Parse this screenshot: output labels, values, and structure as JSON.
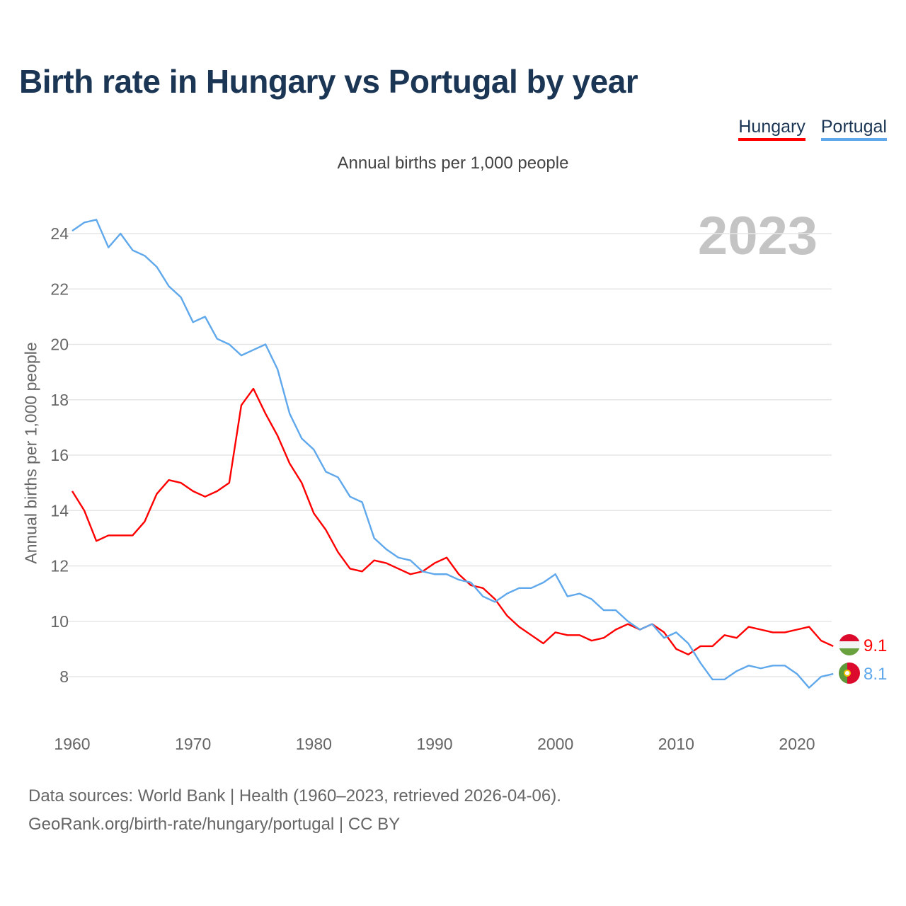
{
  "title": "Birth rate in Hungary vs Portugal by year",
  "subtitle": "Annual births per 1,000 people",
  "year_label": "2023",
  "footer": {
    "line1": "Data sources: World Bank | Health (1960–2023, retrieved 2026-04-06).",
    "line2": "GeoRank.org/birth-rate/hungary/portugal | CC BY"
  },
  "chart_data": {
    "type": "line",
    "title": "Birth rate in Hungary vs Portugal by year",
    "xlabel": "",
    "ylabel": "Annual births per 1,000 people",
    "xlim": [
      1960,
      2023
    ],
    "ylim": [
      7,
      25
    ],
    "xticks": [
      "1960",
      "1970",
      "1980",
      "1990",
      "2000",
      "2010",
      "2020"
    ],
    "yticks": [
      "8",
      "10",
      "12",
      "14",
      "16",
      "18",
      "20",
      "22",
      "24"
    ],
    "grid": true,
    "legend": "top-right",
    "x_start": 1960,
    "series": [
      {
        "name": "Hungary",
        "color": "#ff0000",
        "end_label": "9.1",
        "values": [
          14.7,
          14.0,
          12.9,
          13.1,
          13.1,
          13.1,
          13.6,
          14.6,
          15.1,
          15.0,
          14.7,
          14.5,
          14.7,
          15.0,
          17.8,
          18.4,
          17.5,
          16.7,
          15.7,
          15.0,
          13.9,
          13.3,
          12.5,
          11.9,
          11.8,
          12.2,
          12.1,
          11.9,
          11.7,
          11.8,
          12.1,
          12.3,
          11.7,
          11.3,
          11.2,
          10.8,
          10.2,
          9.8,
          9.5,
          9.2,
          9.6,
          9.5,
          9.5,
          9.3,
          9.4,
          9.7,
          9.9,
          9.7,
          9.9,
          9.6,
          9.0,
          8.8,
          9.1,
          9.1,
          9.5,
          9.4,
          9.8,
          9.7,
          9.6,
          9.6,
          9.7,
          9.8,
          9.3,
          9.1
        ]
      },
      {
        "name": "Portugal",
        "color": "#5fa8ec",
        "end_label": "8.1",
        "values": [
          24.1,
          24.4,
          24.5,
          23.5,
          24.0,
          23.4,
          23.2,
          22.8,
          22.1,
          21.7,
          20.8,
          21.0,
          20.2,
          20.0,
          19.6,
          19.8,
          20.0,
          19.1,
          17.5,
          16.6,
          16.2,
          15.4,
          15.2,
          14.5,
          14.3,
          13.0,
          12.6,
          12.3,
          12.2,
          11.8,
          11.7,
          11.7,
          11.5,
          11.4,
          10.9,
          10.7,
          11.0,
          11.2,
          11.2,
          11.4,
          11.7,
          10.9,
          11.0,
          10.8,
          10.4,
          10.4,
          10.0,
          9.7,
          9.9,
          9.4,
          9.6,
          9.2,
          8.5,
          7.9,
          7.9,
          8.2,
          8.4,
          8.3,
          8.4,
          8.4,
          8.1,
          7.6,
          8.0,
          8.1
        ]
      }
    ]
  }
}
